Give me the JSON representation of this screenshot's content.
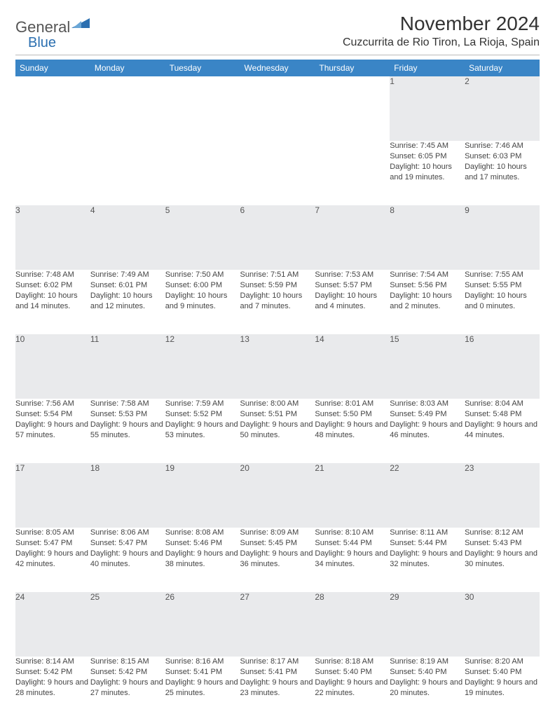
{
  "logo": {
    "text_a": "General",
    "text_b": "Blue",
    "shape_color": "#2b6fb0"
  },
  "title": "November 2024",
  "location": "Cuzcurrita de Rio Tiron, La Rioja, Spain",
  "colors": {
    "header_bg": "#3a85c6",
    "header_fg": "#ffffff",
    "daynum_bg": "#e9eaec",
    "daynum_underline": "#3a85c6",
    "text": "#333333",
    "detail_text": "#444444"
  },
  "days_of_week": [
    "Sunday",
    "Monday",
    "Tuesday",
    "Wednesday",
    "Thursday",
    "Friday",
    "Saturday"
  ],
  "weeks": [
    [
      null,
      null,
      null,
      null,
      null,
      {
        "n": "1",
        "sunrise": "7:45 AM",
        "sunset": "6:05 PM",
        "daylight": "10 hours and 19 minutes."
      },
      {
        "n": "2",
        "sunrise": "7:46 AM",
        "sunset": "6:03 PM",
        "daylight": "10 hours and 17 minutes."
      }
    ],
    [
      {
        "n": "3",
        "sunrise": "7:48 AM",
        "sunset": "6:02 PM",
        "daylight": "10 hours and 14 minutes."
      },
      {
        "n": "4",
        "sunrise": "7:49 AM",
        "sunset": "6:01 PM",
        "daylight": "10 hours and 12 minutes."
      },
      {
        "n": "5",
        "sunrise": "7:50 AM",
        "sunset": "6:00 PM",
        "daylight": "10 hours and 9 minutes."
      },
      {
        "n": "6",
        "sunrise": "7:51 AM",
        "sunset": "5:59 PM",
        "daylight": "10 hours and 7 minutes."
      },
      {
        "n": "7",
        "sunrise": "7:53 AM",
        "sunset": "5:57 PM",
        "daylight": "10 hours and 4 minutes."
      },
      {
        "n": "8",
        "sunrise": "7:54 AM",
        "sunset": "5:56 PM",
        "daylight": "10 hours and 2 minutes."
      },
      {
        "n": "9",
        "sunrise": "7:55 AM",
        "sunset": "5:55 PM",
        "daylight": "10 hours and 0 minutes."
      }
    ],
    [
      {
        "n": "10",
        "sunrise": "7:56 AM",
        "sunset": "5:54 PM",
        "daylight": "9 hours and 57 minutes."
      },
      {
        "n": "11",
        "sunrise": "7:58 AM",
        "sunset": "5:53 PM",
        "daylight": "9 hours and 55 minutes."
      },
      {
        "n": "12",
        "sunrise": "7:59 AM",
        "sunset": "5:52 PM",
        "daylight": "9 hours and 53 minutes."
      },
      {
        "n": "13",
        "sunrise": "8:00 AM",
        "sunset": "5:51 PM",
        "daylight": "9 hours and 50 minutes."
      },
      {
        "n": "14",
        "sunrise": "8:01 AM",
        "sunset": "5:50 PM",
        "daylight": "9 hours and 48 minutes."
      },
      {
        "n": "15",
        "sunrise": "8:03 AM",
        "sunset": "5:49 PM",
        "daylight": "9 hours and 46 minutes."
      },
      {
        "n": "16",
        "sunrise": "8:04 AM",
        "sunset": "5:48 PM",
        "daylight": "9 hours and 44 minutes."
      }
    ],
    [
      {
        "n": "17",
        "sunrise": "8:05 AM",
        "sunset": "5:47 PM",
        "daylight": "9 hours and 42 minutes."
      },
      {
        "n": "18",
        "sunrise": "8:06 AM",
        "sunset": "5:47 PM",
        "daylight": "9 hours and 40 minutes."
      },
      {
        "n": "19",
        "sunrise": "8:08 AM",
        "sunset": "5:46 PM",
        "daylight": "9 hours and 38 minutes."
      },
      {
        "n": "20",
        "sunrise": "8:09 AM",
        "sunset": "5:45 PM",
        "daylight": "9 hours and 36 minutes."
      },
      {
        "n": "21",
        "sunrise": "8:10 AM",
        "sunset": "5:44 PM",
        "daylight": "9 hours and 34 minutes."
      },
      {
        "n": "22",
        "sunrise": "8:11 AM",
        "sunset": "5:44 PM",
        "daylight": "9 hours and 32 minutes."
      },
      {
        "n": "23",
        "sunrise": "8:12 AM",
        "sunset": "5:43 PM",
        "daylight": "9 hours and 30 minutes."
      }
    ],
    [
      {
        "n": "24",
        "sunrise": "8:14 AM",
        "sunset": "5:42 PM",
        "daylight": "9 hours and 28 minutes."
      },
      {
        "n": "25",
        "sunrise": "8:15 AM",
        "sunset": "5:42 PM",
        "daylight": "9 hours and 27 minutes."
      },
      {
        "n": "26",
        "sunrise": "8:16 AM",
        "sunset": "5:41 PM",
        "daylight": "9 hours and 25 minutes."
      },
      {
        "n": "27",
        "sunrise": "8:17 AM",
        "sunset": "5:41 PM",
        "daylight": "9 hours and 23 minutes."
      },
      {
        "n": "28",
        "sunrise": "8:18 AM",
        "sunset": "5:40 PM",
        "daylight": "9 hours and 22 minutes."
      },
      {
        "n": "29",
        "sunrise": "8:19 AM",
        "sunset": "5:40 PM",
        "daylight": "9 hours and 20 minutes."
      },
      {
        "n": "30",
        "sunrise": "8:20 AM",
        "sunset": "5:40 PM",
        "daylight": "9 hours and 19 minutes."
      }
    ]
  ],
  "labels": {
    "sunrise": "Sunrise:",
    "sunset": "Sunset:",
    "daylight": "Daylight:"
  }
}
